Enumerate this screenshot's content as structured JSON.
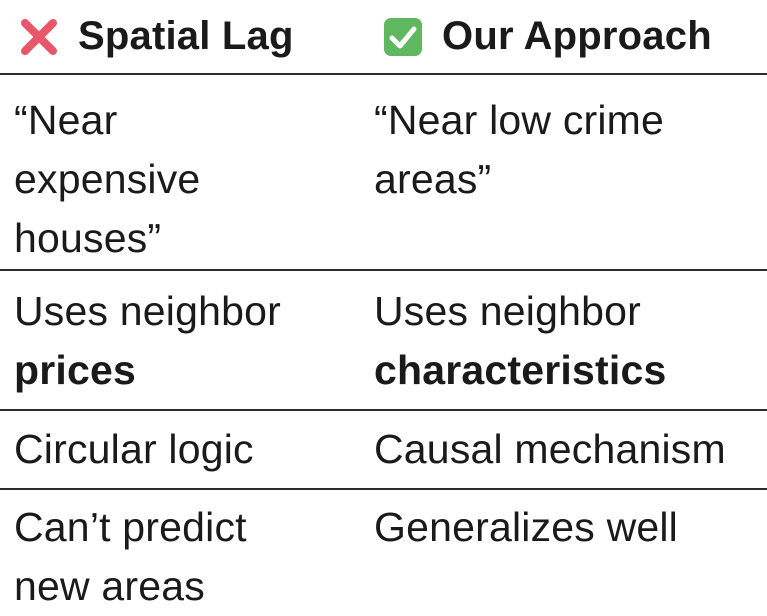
{
  "header": {
    "left": {
      "icon": "cross-mark-icon",
      "label": "Spatial Lag",
      "icon_color": "#e8566a"
    },
    "right": {
      "icon": "check-box-icon",
      "label": "Our Approach",
      "icon_color": "#5fb85f"
    }
  },
  "rows": [
    {
      "left": [
        "“Near",
        "expensive",
        "houses”"
      ],
      "right": [
        "“Near low crime",
        "areas”"
      ]
    },
    {
      "left": {
        "text": "Uses neighbor",
        "bold": "prices"
      },
      "right": {
        "text": "Uses neighbor",
        "bold": "characteristics"
      }
    },
    {
      "left": "Circular logic",
      "right": "Causal mechanism"
    },
    {
      "left": [
        "Can’t predict",
        "new areas"
      ],
      "right": "Generalizes well"
    }
  ]
}
